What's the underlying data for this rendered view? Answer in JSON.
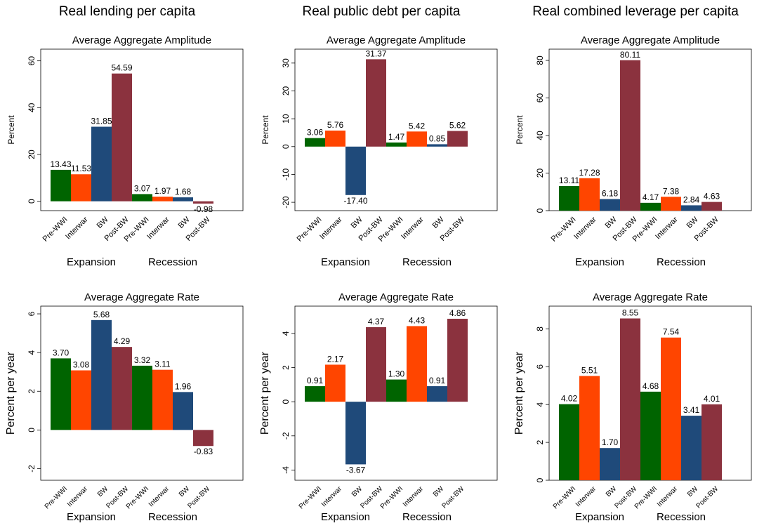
{
  "columns": [
    {
      "title": "Real lending per capita"
    },
    {
      "title": "Real public debt per capita"
    },
    {
      "title": "Real combined leverage per capita"
    }
  ],
  "colors": {
    "Pre-WWI": "#006400",
    "Interwar": "#ff4500",
    "BW": "#1f4a7a",
    "Post-BW": "#8b323e"
  },
  "chart_data": [
    {
      "type": "bar",
      "title": "Average Aggregate Amplitude",
      "ylabel": "Percent",
      "xlabel": "",
      "groups": [
        "Expansion",
        "Recession"
      ],
      "categories": [
        "Pre-WWI",
        "Interwar",
        "BW",
        "Post-BW"
      ],
      "values": [
        [
          13.43,
          11.53,
          31.85,
          54.59
        ],
        [
          3.07,
          1.97,
          1.68,
          -0.98
        ]
      ],
      "labels": [
        [
          "13.43",
          "11.53",
          "31.85",
          "54.59"
        ],
        [
          "3.07",
          "1.97",
          "1.68",
          "-0.98"
        ]
      ],
      "ylim": [
        -4,
        65
      ],
      "yticks": [
        0,
        20,
        40,
        60
      ],
      "grid": false
    },
    {
      "type": "bar",
      "title": "Average Aggregate Amplitude",
      "ylabel": "Percent",
      "xlabel": "",
      "groups": [
        "Expansion",
        "Recession"
      ],
      "categories": [
        "Pre-WWI",
        "Interwar",
        "BW",
        "Post-BW"
      ],
      "values": [
        [
          3.06,
          5.76,
          -17.4,
          31.37
        ],
        [
          1.47,
          5.42,
          0.85,
          5.62
        ]
      ],
      "labels": [
        [
          "3.06",
          "5.76",
          "-17.40",
          "31.37"
        ],
        [
          "1.47",
          "5.42",
          "0.85",
          "5.62"
        ]
      ],
      "ylim": [
        -23,
        35
      ],
      "yticks": [
        -20,
        -10,
        0,
        10,
        20,
        30
      ],
      "grid": false
    },
    {
      "type": "bar",
      "title": "Average Aggregate Amplitude",
      "ylabel": "Percent",
      "xlabel": "",
      "groups": [
        "Expansion",
        "Recession"
      ],
      "categories": [
        "Pre-WWI",
        "Interwar",
        "BW",
        "Post-BW"
      ],
      "values": [
        [
          13.11,
          17.28,
          6.18,
          80.11
        ],
        [
          4.17,
          7.38,
          2.84,
          4.63
        ]
      ],
      "labels": [
        [
          "13.11",
          "17.28",
          "6.18",
          "80.11"
        ],
        [
          "4.17",
          "7.38",
          "2.84",
          "4.63"
        ]
      ],
      "ylim": [
        0,
        86
      ],
      "yticks": [
        0,
        20,
        40,
        60,
        80
      ],
      "grid": false
    },
    {
      "type": "bar",
      "title": "Average Aggregate Rate",
      "ylabel": "Percent per year",
      "xlabel": "",
      "groups": [
        "Expansion",
        "Recession"
      ],
      "categories": [
        "Pre-WWI",
        "Interwar",
        "BW",
        "Post-BW"
      ],
      "values": [
        [
          3.7,
          3.08,
          5.68,
          4.29
        ],
        [
          3.32,
          3.11,
          1.96,
          -0.83
        ]
      ],
      "labels": [
        [
          "3.70",
          "3.08",
          "5.68",
          "4.29"
        ],
        [
          "3.32",
          "3.11",
          "1.96",
          "-0.83"
        ]
      ],
      "ylim": [
        -2.6,
        6.4
      ],
      "yticks": [
        -2,
        0,
        2,
        4,
        6
      ],
      "grid": false
    },
    {
      "type": "bar",
      "title": "Average Aggregate Rate",
      "ylabel": "Percent per year",
      "xlabel": "",
      "groups": [
        "Expansion",
        "Recession"
      ],
      "categories": [
        "Pre-WWI",
        "Interwar",
        "BW",
        "Post-BW"
      ],
      "values": [
        [
          0.91,
          2.17,
          -3.67,
          4.37
        ],
        [
          1.3,
          4.43,
          0.91,
          4.86
        ]
      ],
      "labels": [
        [
          "0.91",
          "2.17",
          "-3.67",
          "4.37"
        ],
        [
          "1.30",
          "4.43",
          "0.91",
          "4.86"
        ]
      ],
      "ylim": [
        -4.6,
        5.6
      ],
      "yticks": [
        -4,
        -2,
        0,
        2,
        4
      ],
      "grid": false
    },
    {
      "type": "bar",
      "title": "Average Aggregate Rate",
      "ylabel": "Percent per year",
      "xlabel": "",
      "groups": [
        "Expansion",
        "Recession"
      ],
      "categories": [
        "Pre-WWI",
        "Interwar",
        "BW",
        "Post-BW"
      ],
      "values": [
        [
          4.02,
          5.51,
          1.7,
          8.55
        ],
        [
          4.68,
          7.54,
          3.41,
          4.01
        ]
      ],
      "labels": [
        [
          "4.02",
          "5.51",
          "1.70",
          "8.55"
        ],
        [
          "4.68",
          "7.54",
          "3.41",
          "4.01"
        ]
      ],
      "ylim": [
        0,
        9.2
      ],
      "yticks": [
        0,
        2,
        4,
        6,
        8
      ],
      "grid": false
    }
  ]
}
